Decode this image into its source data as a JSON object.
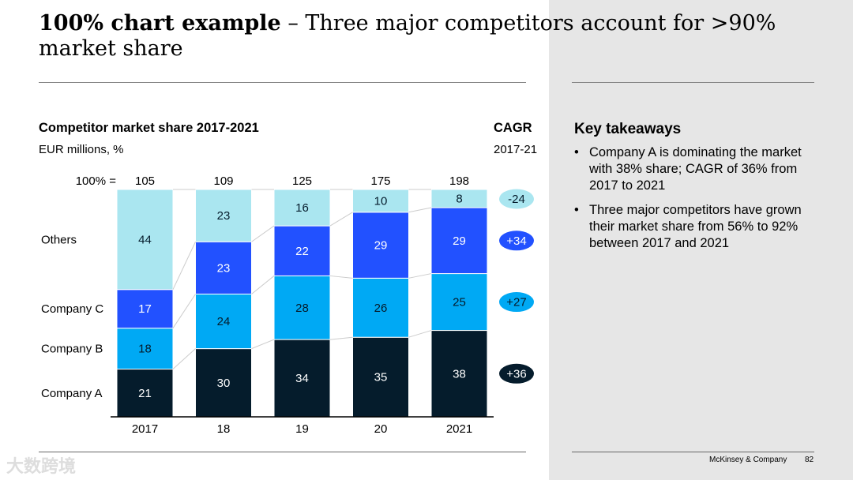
{
  "header": {
    "title_bold": "100% chart example",
    "title_rest": " – Three major competitors account for >90% market share"
  },
  "chart_data": {
    "type": "bar",
    "stacked": "100%",
    "title": "Competitor market share 2017-2021",
    "subtitle": "EUR millions, %",
    "total_label": "100% =",
    "categories": [
      "2017",
      "18",
      "19",
      "20",
      "2021"
    ],
    "totals": [
      "105",
      "109",
      "125",
      "175",
      "198"
    ],
    "series": [
      {
        "name": "Company A",
        "values": [
          21,
          30,
          34,
          35,
          38
        ],
        "color": "#051c2c",
        "text": "#ffffff",
        "cagr": "+36"
      },
      {
        "name": "Company B",
        "values": [
          18,
          24,
          28,
          26,
          25
        ],
        "color": "#00a9f4",
        "text": "#051c2c",
        "cagr": "+27"
      },
      {
        "name": "Company C",
        "values": [
          17,
          23,
          22,
          29,
          29
        ],
        "color": "#2251ff",
        "text": "#ffffff",
        "cagr": "+34"
      },
      {
        "name": "Others",
        "values": [
          44,
          23,
          16,
          10,
          8
        ],
        "color": "#aae6f0",
        "text": "#051c2c",
        "cagr": "-24"
      }
    ],
    "cagr_title": "CAGR",
    "cagr_period": "2017-21",
    "ylim": [
      0,
      100
    ]
  },
  "takeaways": {
    "title": "Key takeaways",
    "items": [
      "Company A is dominating the market with 38% share; CAGR of 36% from 2017 to 2021",
      "Three major competitors have grown their market share from 56% to 92% between 2017 and 2021"
    ]
  },
  "footer": {
    "company": "McKinsey & Company",
    "page": "82"
  },
  "watermark": "大数跨境"
}
